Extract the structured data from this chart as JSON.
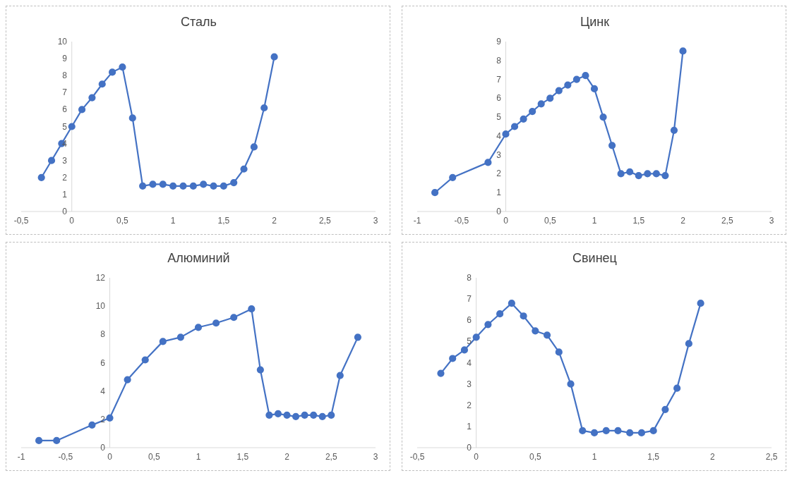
{
  "chart_data": [
    {
      "type": "line",
      "title": "Сталь",
      "color": "#4472c4",
      "marker": "circle",
      "xlim": [
        -0.5,
        3
      ],
      "xticks": [
        {
          "value": -0.5,
          "label": "-0,5"
        },
        0,
        {
          "value": 0.5,
          "label": "0,5"
        },
        1,
        {
          "value": 1.5,
          "label": "1,5"
        },
        2,
        {
          "value": 2.5,
          "label": "2,5"
        },
        3
      ],
      "ylim": [
        0,
        10
      ],
      "yticks": [
        0,
        1,
        2,
        3,
        4,
        5,
        6,
        7,
        8,
        9,
        10
      ],
      "x": [
        -0.3,
        -0.2,
        -0.1,
        0,
        0.1,
        0.2,
        0.3,
        0.4,
        0.5,
        0.6,
        0.7,
        0.8,
        0.9,
        1.0,
        1.1,
        1.2,
        1.3,
        1.4,
        1.5,
        1.6,
        1.7,
        1.8,
        1.9,
        2.0
      ],
      "values": [
        2,
        3,
        4,
        5,
        6,
        6.7,
        7.5,
        8.2,
        8.5,
        5.5,
        1.5,
        1.6,
        1.6,
        1.5,
        1.5,
        1.5,
        1.6,
        1.5,
        1.5,
        1.7,
        2.5,
        3.8,
        6.1,
        9.1
      ]
    },
    {
      "type": "line",
      "title": "Цинк",
      "color": "#4472c4",
      "marker": "circle",
      "xlim": [
        -1,
        3
      ],
      "xticks": [
        -1,
        {
          "value": -0.5,
          "label": "-0,5"
        },
        0,
        {
          "value": 0.5,
          "label": "0,5"
        },
        1,
        {
          "value": 1.5,
          "label": "1,5"
        },
        2,
        {
          "value": 2.5,
          "label": "2,5"
        },
        3
      ],
      "ylim": [
        0,
        9
      ],
      "yticks": [
        0,
        1,
        2,
        3,
        4,
        5,
        6,
        7,
        8,
        9
      ],
      "x": [
        -0.8,
        -0.6,
        -0.2,
        0,
        0.1,
        0.2,
        0.3,
        0.4,
        0.5,
        0.6,
        0.7,
        0.8,
        0.9,
        1.0,
        1.1,
        1.2,
        1.3,
        1.4,
        1.5,
        1.6,
        1.7,
        1.8,
        1.9,
        2.0
      ],
      "values": [
        1,
        1.8,
        2.6,
        4.1,
        4.5,
        4.9,
        5.3,
        5.7,
        6,
        6.4,
        6.7,
        7,
        7.2,
        6.5,
        5,
        3.5,
        2,
        2.1,
        1.9,
        2,
        2,
        1.9,
        4.3,
        8.5
      ]
    },
    {
      "type": "line",
      "title": "Алюминий",
      "color": "#4472c4",
      "marker": "circle",
      "xlim": [
        -1,
        3
      ],
      "xticks": [
        -1,
        {
          "value": -0.5,
          "label": "-0,5"
        },
        0,
        {
          "value": 0.5,
          "label": "0,5"
        },
        1,
        {
          "value": 1.5,
          "label": "1,5"
        },
        2,
        {
          "value": 2.5,
          "label": "2,5"
        },
        3
      ],
      "ylim": [
        0,
        12
      ],
      "yticks": [
        0,
        2,
        4,
        6,
        8,
        10,
        12
      ],
      "x": [
        -0.8,
        -0.6,
        -0.2,
        0,
        0.2,
        0.4,
        0.6,
        0.8,
        1.0,
        1.2,
        1.4,
        1.6,
        1.7,
        1.8,
        1.9,
        2.0,
        2.1,
        2.2,
        2.3,
        2.4,
        2.5,
        2.6,
        2.8
      ],
      "values": [
        0.5,
        0.5,
        1.6,
        2.1,
        4.8,
        6.2,
        7.5,
        7.8,
        8.5,
        8.8,
        9.2,
        9.8,
        5.5,
        2.3,
        2.4,
        2.3,
        2.2,
        2.3,
        2.3,
        2.2,
        2.3,
        5.1,
        7.8
      ]
    },
    {
      "type": "line",
      "title": "Свинец",
      "color": "#4472c4",
      "marker": "circle",
      "xlim": [
        -0.5,
        2.5
      ],
      "xticks": [
        {
          "value": -0.5,
          "label": "-0,5"
        },
        0,
        {
          "value": 0.5,
          "label": "0,5"
        },
        1,
        {
          "value": 1.5,
          "label": "1,5"
        },
        2,
        {
          "value": 2.5,
          "label": "2,5"
        }
      ],
      "ylim": [
        0,
        8
      ],
      "yticks": [
        0,
        1,
        2,
        3,
        4,
        5,
        6,
        7,
        8
      ],
      "x": [
        -0.3,
        -0.2,
        -0.1,
        0,
        0.1,
        0.2,
        0.3,
        0.4,
        0.5,
        0.6,
        0.7,
        0.8,
        0.9,
        1.0,
        1.1,
        1.2,
        1.3,
        1.4,
        1.5,
        1.6,
        1.7,
        1.8,
        1.9
      ],
      "values": [
        3.5,
        4.2,
        4.6,
        5.2,
        5.8,
        6.3,
        6.8,
        6.2,
        5.5,
        5.3,
        4.5,
        3,
        0.8,
        0.7,
        0.8,
        0.8,
        0.7,
        0.7,
        0.8,
        1.8,
        2.8,
        4.9,
        6.8
      ]
    }
  ]
}
